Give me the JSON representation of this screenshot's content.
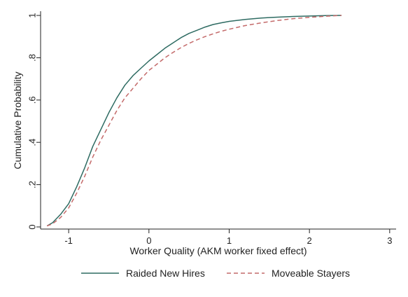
{
  "chart_data": {
    "type": "line",
    "title": "",
    "xlabel": "Worker Quality (AKM worker fixed effect)",
    "ylabel": "Cumulative Probability",
    "xlim": [
      -1.35,
      3.08
    ],
    "ylim": [
      -0.01,
      1.02
    ],
    "xticks": [
      {
        "v": -1,
        "label": "-1"
      },
      {
        "v": 0,
        "label": "0"
      },
      {
        "v": 1,
        "label": "1"
      },
      {
        "v": 2,
        "label": "2"
      },
      {
        "v": 3,
        "label": "3"
      }
    ],
    "yticks": [
      {
        "v": 0,
        "label": "0"
      },
      {
        "v": 0.2,
        "label": ".2"
      },
      {
        "v": 0.4,
        "label": ".4"
      },
      {
        "v": 0.6,
        "label": ".6"
      },
      {
        "v": 0.8,
        "label": ".8"
      },
      {
        "v": 1,
        "label": "1"
      }
    ],
    "grid": false,
    "legend_position": "bottom",
    "series": [
      {
        "name": "Raided New Hires",
        "color": "#2e6b62",
        "style": "solid",
        "points": [
          [
            -1.27,
            0.005
          ],
          [
            -1.2,
            0.02
          ],
          [
            -1.1,
            0.06
          ],
          [
            -1.0,
            0.11
          ],
          [
            -0.9,
            0.19
          ],
          [
            -0.8,
            0.28
          ],
          [
            -0.7,
            0.38
          ],
          [
            -0.6,
            0.46
          ],
          [
            -0.5,
            0.54
          ],
          [
            -0.4,
            0.61
          ],
          [
            -0.3,
            0.67
          ],
          [
            -0.2,
            0.715
          ],
          [
            -0.1,
            0.75
          ],
          [
            0.0,
            0.785
          ],
          [
            0.1,
            0.815
          ],
          [
            0.2,
            0.845
          ],
          [
            0.3,
            0.87
          ],
          [
            0.4,
            0.895
          ],
          [
            0.5,
            0.915
          ],
          [
            0.6,
            0.93
          ],
          [
            0.7,
            0.945
          ],
          [
            0.8,
            0.957
          ],
          [
            0.9,
            0.965
          ],
          [
            1.0,
            0.972
          ],
          [
            1.2,
            0.981
          ],
          [
            1.4,
            0.988
          ],
          [
            1.6,
            0.992
          ],
          [
            1.8,
            0.995
          ],
          [
            2.0,
            0.997
          ],
          [
            2.2,
            0.999
          ],
          [
            2.4,
            1.0
          ]
        ]
      },
      {
        "name": "Moveable Stayers",
        "color": "#c46a6a",
        "style": "dashed",
        "points": [
          [
            -1.27,
            0.005
          ],
          [
            -1.2,
            0.015
          ],
          [
            -1.1,
            0.045
          ],
          [
            -1.0,
            0.09
          ],
          [
            -0.9,
            0.16
          ],
          [
            -0.8,
            0.24
          ],
          [
            -0.7,
            0.33
          ],
          [
            -0.6,
            0.41
          ],
          [
            -0.5,
            0.48
          ],
          [
            -0.4,
            0.55
          ],
          [
            -0.3,
            0.61
          ],
          [
            -0.2,
            0.655
          ],
          [
            -0.1,
            0.7
          ],
          [
            0.0,
            0.74
          ],
          [
            0.1,
            0.77
          ],
          [
            0.2,
            0.8
          ],
          [
            0.3,
            0.825
          ],
          [
            0.4,
            0.848
          ],
          [
            0.5,
            0.868
          ],
          [
            0.6,
            0.885
          ],
          [
            0.7,
            0.9
          ],
          [
            0.8,
            0.913
          ],
          [
            0.9,
            0.925
          ],
          [
            1.0,
            0.935
          ],
          [
            1.2,
            0.952
          ],
          [
            1.4,
            0.965
          ],
          [
            1.6,
            0.976
          ],
          [
            1.8,
            0.985
          ],
          [
            2.0,
            0.991
          ],
          [
            2.2,
            0.996
          ],
          [
            2.4,
            1.0
          ]
        ]
      }
    ]
  }
}
